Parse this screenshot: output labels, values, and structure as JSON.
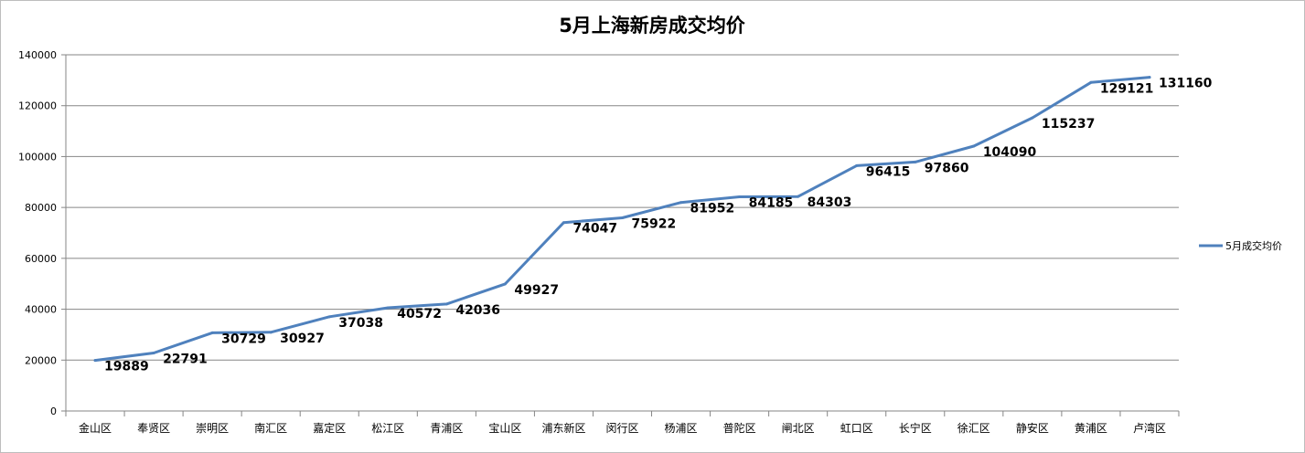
{
  "chart_data": {
    "type": "line",
    "title": "5月上海新房成交均价",
    "xlabel": "",
    "ylabel": "",
    "ylim": [
      0,
      140000
    ],
    "yticks": [
      0,
      20000,
      40000,
      60000,
      80000,
      100000,
      120000,
      140000
    ],
    "grid": true,
    "legend_position": "right",
    "categories": [
      "金山区",
      "奉贤区",
      "崇明区",
      "南汇区",
      "嘉定区",
      "松江区",
      "青浦区",
      "宝山区",
      "浦东新区",
      "闵行区",
      "杨浦区",
      "普陀区",
      "闸北区",
      "虹口区",
      "长宁区",
      "徐汇区",
      "静安区",
      "黄浦区",
      "卢湾区"
    ],
    "series": [
      {
        "name": "5月成交均价",
        "color": "#4f81bd",
        "values": [
          19889,
          22791,
          30729,
          30927,
          37038,
          40572,
          42036,
          49927,
          74047,
          75922,
          81952,
          84185,
          84303,
          96415,
          97860,
          104090,
          115237,
          129121,
          131160
        ]
      }
    ]
  }
}
